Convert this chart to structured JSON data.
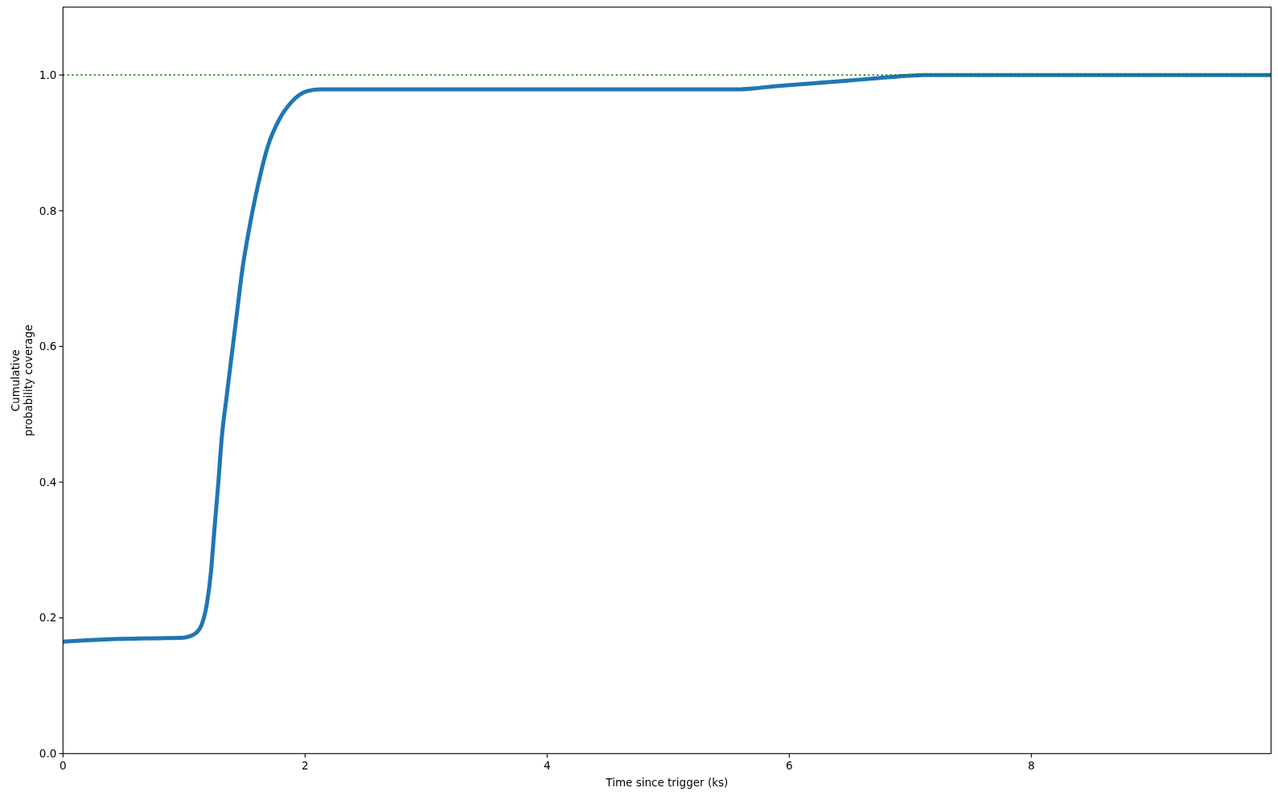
{
  "chart_data": {
    "type": "line",
    "xlabel": "Time since trigger (ks)",
    "ylabel": "Cumulative\nprobability coverage",
    "x": [
      0,
      0.2,
      0.5,
      0.8,
      1.0,
      1.05,
      1.1,
      1.144,
      1.19,
      1.221,
      1.251,
      1.282,
      1.312,
      1.352,
      1.389,
      1.435,
      1.48,
      1.541,
      1.609,
      1.694,
      1.785,
      1.892,
      2.014,
      2.121,
      3.0,
      4.0,
      5.0,
      5.6,
      5.7,
      5.8,
      6.0,
      6.5,
      7.0,
      7.1,
      8.0,
      9.0,
      9.98
    ],
    "series": [
      {
        "color": "#1f77b4",
        "values": [
          0.165,
          0.167,
          0.169,
          0.17,
          0.171,
          0.173,
          0.178,
          0.189,
          0.222,
          0.265,
          0.33,
          0.396,
          0.466,
          0.526,
          0.58,
          0.646,
          0.711,
          0.776,
          0.836,
          0.896,
          0.934,
          0.961,
          0.976,
          0.979,
          0.979,
          0.979,
          0.979,
          0.979,
          0.98,
          0.982,
          0.985,
          0.992,
          0.999,
          1.0,
          1.0,
          1.0,
          1.0
        ]
      }
    ],
    "xlim": [
      0,
      9.98
    ],
    "xticks": [
      0,
      2,
      4,
      6,
      8
    ],
    "ylim": [
      0,
      1.1
    ],
    "yticks": [
      {
        "value": 0,
        "label": "0.0"
      },
      0.2,
      0.4,
      0.6,
      0.8,
      {
        "value": 1,
        "label": "1.0"
      }
    ],
    "ref_lines": [
      {
        "axis": "y",
        "value": 1.0,
        "color": "#008000",
        "line_style": "dotted"
      }
    ],
    "grid": false,
    "marker": "none",
    "line_style": "solid"
  }
}
